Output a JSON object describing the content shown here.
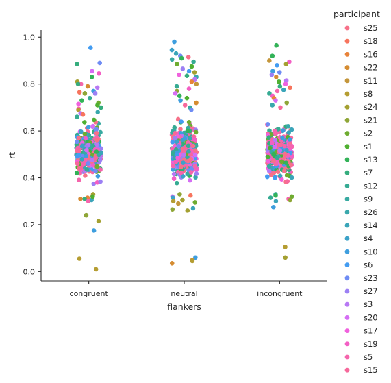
{
  "chart_data": {
    "type": "scatter",
    "subtype": "strip",
    "xlabel": "flankers",
    "ylabel": "rt",
    "categories": [
      "congruent",
      "neutral",
      "incongruent"
    ],
    "ylim": [
      -0.04,
      1.03
    ],
    "yticks": [
      0.0,
      0.2,
      0.4,
      0.6,
      0.8,
      1.0
    ],
    "ytick_labels": [
      "0.0",
      "0.2",
      "0.4",
      "0.6",
      "0.8",
      "1.0"
    ],
    "grid": false,
    "legend": {
      "title": "participant",
      "placement": "right",
      "entries": [
        {
          "name": "s25",
          "color": "#f77189"
        },
        {
          "name": "s18",
          "color": "#f7745d"
        },
        {
          "name": "s16",
          "color": "#e8833a"
        },
        {
          "name": "s22",
          "color": "#d58c32"
        },
        {
          "name": "s11",
          "color": "#c4963b"
        },
        {
          "name": "s8",
          "color": "#b59d32"
        },
        {
          "name": "s24",
          "color": "#a4a031"
        },
        {
          "name": "s21",
          "color": "#8fa637"
        },
        {
          "name": "s2",
          "color": "#6eac31"
        },
        {
          "name": "s1",
          "color": "#4fb031"
        },
        {
          "name": "s13",
          "color": "#33b258"
        },
        {
          "name": "s7",
          "color": "#35ad7d"
        },
        {
          "name": "s12",
          "color": "#36ab93"
        },
        {
          "name": "s9",
          "color": "#38aaa1"
        },
        {
          "name": "s26",
          "color": "#39a8ac"
        },
        {
          "name": "s14",
          "color": "#3aa5b9"
        },
        {
          "name": "s4",
          "color": "#3ca2c8"
        },
        {
          "name": "s10",
          "color": "#3e9ede"
        },
        {
          "name": "s6",
          "color": "#439cf1"
        },
        {
          "name": "s23",
          "color": "#6f8cf4"
        },
        {
          "name": "s27",
          "color": "#9c80f4"
        },
        {
          "name": "s3",
          "color": "#b778f4"
        },
        {
          "name": "s20",
          "color": "#d56ef4"
        },
        {
          "name": "s17",
          "color": "#f061dd"
        },
        {
          "name": "s19",
          "color": "#f35fc4"
        },
        {
          "name": "s5",
          "color": "#f565ac"
        },
        {
          "name": "s15",
          "color": "#f6689b"
        }
      ]
    },
    "series": [
      {
        "category": "congruent",
        "points": [
          {
            "y": 0.955,
            "c": 18
          },
          {
            "y": 0.89,
            "c": 19
          },
          {
            "y": 0.885,
            "c": 11
          },
          {
            "y": 0.855,
            "c": 22
          },
          {
            "y": 0.845,
            "c": 24
          },
          {
            "y": 0.83,
            "c": 10
          },
          {
            "y": 0.81,
            "c": 6
          },
          {
            "y": 0.8,
            "c": 25
          },
          {
            "y": 0.8,
            "c": 11
          },
          {
            "y": 0.79,
            "c": 3
          },
          {
            "y": 0.785,
            "c": 21
          },
          {
            "y": 0.77,
            "c": 17
          },
          {
            "y": 0.765,
            "c": 1
          },
          {
            "y": 0.76,
            "c": 20
          },
          {
            "y": 0.76,
            "c": 7
          },
          {
            "y": 0.74,
            "c": 12
          },
          {
            "y": 0.73,
            "c": 10
          },
          {
            "y": 0.72,
            "c": 8
          },
          {
            "y": 0.715,
            "c": 23
          },
          {
            "y": 0.71,
            "c": 9
          },
          {
            "y": 0.7,
            "c": 11
          },
          {
            "y": 0.695,
            "c": 25
          },
          {
            "y": 0.69,
            "c": 5
          },
          {
            "y": 0.68,
            "c": 14
          },
          {
            "y": 0.675,
            "c": 21
          },
          {
            "y": 0.67,
            "c": 1
          },
          {
            "y": 0.66,
            "c": 12
          },
          {
            "y": 0.33,
            "c": 6
          },
          {
            "y": 0.32,
            "c": 0
          },
          {
            "y": 0.315,
            "c": 2
          },
          {
            "y": 0.31,
            "c": 11
          },
          {
            "y": 0.305,
            "c": 15
          },
          {
            "y": 0.31,
            "c": 3
          },
          {
            "y": 0.3,
            "c": 25
          },
          {
            "y": 0.32,
            "c": 9
          },
          {
            "y": 0.24,
            "c": 7
          },
          {
            "y": 0.215,
            "c": 6
          },
          {
            "y": 0.175,
            "c": 17
          },
          {
            "y": 0.055,
            "c": 5
          },
          {
            "y": 0.01,
            "c": 5
          }
        ]
      },
      {
        "category": "neutral",
        "points": [
          {
            "y": 0.98,
            "c": 17
          },
          {
            "y": 0.945,
            "c": 16
          },
          {
            "y": 0.93,
            "c": 15
          },
          {
            "y": 0.92,
            "c": 19
          },
          {
            "y": 0.915,
            "c": 0
          },
          {
            "y": 0.91,
            "c": 10
          },
          {
            "y": 0.905,
            "c": 13
          },
          {
            "y": 0.895,
            "c": 12
          },
          {
            "y": 0.885,
            "c": 8
          },
          {
            "y": 0.875,
            "c": 9
          },
          {
            "y": 0.865,
            "c": 20
          },
          {
            "y": 0.855,
            "c": 18
          },
          {
            "y": 0.85,
            "c": 6
          },
          {
            "y": 0.84,
            "c": 23
          },
          {
            "y": 0.835,
            "c": 11
          },
          {
            "y": 0.83,
            "c": 14
          },
          {
            "y": 0.82,
            "c": 21
          },
          {
            "y": 0.81,
            "c": 2
          },
          {
            "y": 0.8,
            "c": 4
          },
          {
            "y": 0.79,
            "c": 12
          },
          {
            "y": 0.78,
            "c": 24
          },
          {
            "y": 0.77,
            "c": 7
          },
          {
            "y": 0.76,
            "c": 22
          },
          {
            "y": 0.75,
            "c": 10
          },
          {
            "y": 0.74,
            "c": 9
          },
          {
            "y": 0.73,
            "c": 17
          },
          {
            "y": 0.72,
            "c": 3
          },
          {
            "y": 0.71,
            "c": 26
          },
          {
            "y": 0.7,
            "c": 13
          },
          {
            "y": 0.69,
            "c": 19
          },
          {
            "y": 0.33,
            "c": 7
          },
          {
            "y": 0.325,
            "c": 1
          },
          {
            "y": 0.32,
            "c": 22
          },
          {
            "y": 0.315,
            "c": 16
          },
          {
            "y": 0.305,
            "c": 6
          },
          {
            "y": 0.3,
            "c": 5
          },
          {
            "y": 0.295,
            "c": 8
          },
          {
            "y": 0.29,
            "c": 4
          },
          {
            "y": 0.27,
            "c": 15
          },
          {
            "y": 0.265,
            "c": 7
          },
          {
            "y": 0.26,
            "c": 6
          },
          {
            "y": 0.06,
            "c": 17
          },
          {
            "y": 0.05,
            "c": 4
          },
          {
            "y": 0.045,
            "c": 5
          },
          {
            "y": 0.035,
            "c": 3
          }
        ]
      },
      {
        "category": "incongruent",
        "points": [
          {
            "y": 0.965,
            "c": 10
          },
          {
            "y": 0.92,
            "c": 10
          },
          {
            "y": 0.9,
            "c": 4
          },
          {
            "y": 0.895,
            "c": 24
          },
          {
            "y": 0.885,
            "c": 6
          },
          {
            "y": 0.88,
            "c": 18
          },
          {
            "y": 0.855,
            "c": 17
          },
          {
            "y": 0.85,
            "c": 19
          },
          {
            "y": 0.84,
            "c": 20
          },
          {
            "y": 0.83,
            "c": 3
          },
          {
            "y": 0.815,
            "c": 21
          },
          {
            "y": 0.81,
            "c": 9
          },
          {
            "y": 0.8,
            "c": 23
          },
          {
            "y": 0.79,
            "c": 11
          },
          {
            "y": 0.785,
            "c": 1
          },
          {
            "y": 0.775,
            "c": 15
          },
          {
            "y": 0.77,
            "c": 25
          },
          {
            "y": 0.76,
            "c": 12
          },
          {
            "y": 0.75,
            "c": 24
          },
          {
            "y": 0.74,
            "c": 2
          },
          {
            "y": 0.73,
            "c": 22
          },
          {
            "y": 0.72,
            "c": 7
          },
          {
            "y": 0.71,
            "c": 14
          },
          {
            "y": 0.7,
            "c": 26
          },
          {
            "y": 0.33,
            "c": 13
          },
          {
            "y": 0.325,
            "c": 10
          },
          {
            "y": 0.32,
            "c": 8
          },
          {
            "y": 0.315,
            "c": 12
          },
          {
            "y": 0.31,
            "c": 25
          },
          {
            "y": 0.305,
            "c": 7
          },
          {
            "y": 0.3,
            "c": 15
          },
          {
            "y": 0.275,
            "c": 17
          },
          {
            "y": 0.105,
            "c": 5
          },
          {
            "y": 0.06,
            "c": 6
          }
        ]
      }
    ],
    "dense_band": {
      "y_range": [
        0.34,
        0.68
      ],
      "points_per_category": 320
    }
  }
}
